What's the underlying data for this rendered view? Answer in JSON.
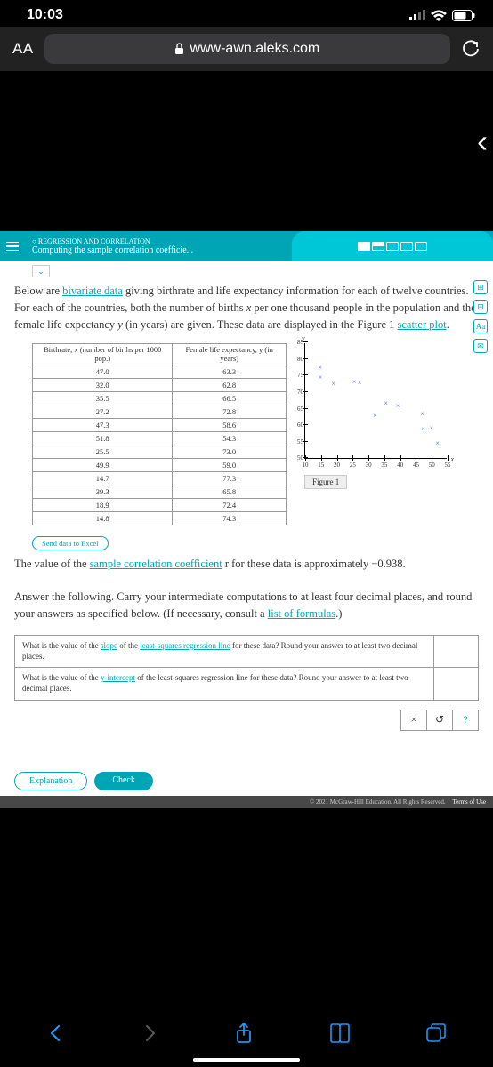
{
  "status": {
    "time": "10:03"
  },
  "browser": {
    "aa": "AA",
    "url": "www-awn.aleks.com"
  },
  "header": {
    "topic": "○ REGRESSION AND CORRELATION",
    "title": "Computing the sample correlation coefficie..."
  },
  "problem": {
    "para1_prefix": "Below are ",
    "link_bivariate": "bivariate data",
    "para1_mid": " giving birthrate and life expectancy information for each of twelve countries. For each of the countries, both the number of births ",
    "x_sym": "x",
    "para1_mid2": " per one thousand people in the population and the female life expectancy ",
    "y_sym": "y",
    "para1_end": " (in years) are given. These data are displayed in the Figure 1 ",
    "link_scatter": "scatter plot",
    "para2_prefix": "The value of the ",
    "link_corr": "sample correlation coefficient",
    "para2_suffix": " r for these data is approximately −0.938.",
    "para3": "Answer the following. Carry your intermediate computations to at least four decimal places, and round your answers as specified below. (If necessary, consult a ",
    "link_formulas": "list of formulas",
    "para3_end": ".)"
  },
  "table": {
    "col1": "Birthrate, x\n(number of\nbirths per 1000\npop.)",
    "col2": "Female life\nexpectancy, y\n(in years)",
    "rows": [
      [
        "47.0",
        "63.3"
      ],
      [
        "32.0",
        "62.8"
      ],
      [
        "35.5",
        "66.5"
      ],
      [
        "27.2",
        "72.8"
      ],
      [
        "47.3",
        "58.6"
      ],
      [
        "51.8",
        "54.3"
      ],
      [
        "25.5",
        "73.0"
      ],
      [
        "49.9",
        "59.0"
      ],
      [
        "14.7",
        "77.3"
      ],
      [
        "39.3",
        "65.8"
      ],
      [
        "18.9",
        "72.4"
      ],
      [
        "14.8",
        "74.3"
      ]
    ],
    "send_excel": "Send data to Excel"
  },
  "chart": {
    "figure_label": "Figure 1",
    "x_sym": "x",
    "y_sym": "y",
    "xlim": [
      10,
      55
    ],
    "ylim": [
      50,
      85
    ],
    "xticks": [
      10,
      15,
      20,
      25,
      30,
      35,
      40,
      45,
      50,
      55
    ],
    "yticks": [
      50,
      55,
      60,
      65,
      70,
      75,
      80,
      85
    ],
    "x_data": [
      47.0,
      32.0,
      35.5,
      27.2,
      47.3,
      51.8,
      25.5,
      49.9,
      14.7,
      39.3,
      18.9,
      14.8
    ],
    "y_data": [
      63.3,
      62.8,
      66.5,
      72.8,
      58.6,
      54.3,
      73.0,
      59.0,
      77.3,
      65.8,
      72.4,
      74.3
    ],
    "point_color": "#4169E1",
    "axis_color": "#000000",
    "background": "#ffffff"
  },
  "questions": {
    "q1_prefix": "What is the value of the ",
    "q1_link1": "slope",
    "q1_mid": " of the ",
    "q1_link2": "least-squares regression line",
    "q1_suffix": " for these data? Round your answer to at least two decimal places.",
    "q2_prefix": "What is the value of the ",
    "q2_link": "y-intercept",
    "q2_suffix": " of the least-squares regression line for these data? Round your answer to at least two decimal places."
  },
  "helpers": {
    "clear": "×",
    "undo": "↺",
    "help": "?"
  },
  "buttons": {
    "explanation": "Explanation",
    "check": "Check"
  },
  "footer": {
    "copyright": "© 2021 McGraw-Hill Education. All Rights Reserved.",
    "terms": "Terms of Use"
  }
}
